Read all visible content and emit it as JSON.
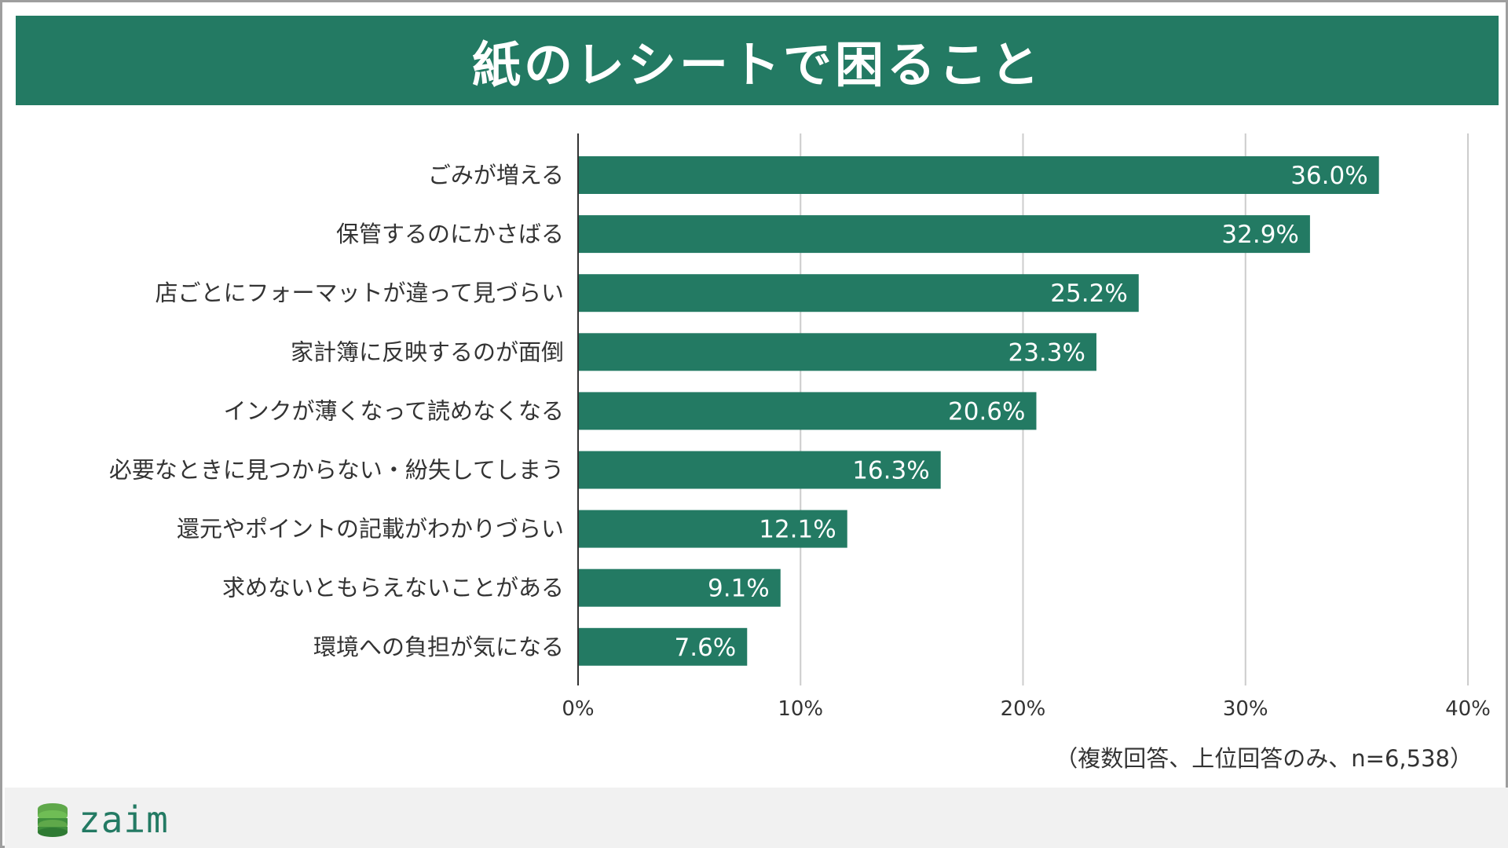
{
  "title": "紙のレシートで困ること",
  "note": "（複数回答、上位回答のみ、n=6,538）",
  "brand": {
    "name": "zaim",
    "icon": "coin-stack-icon"
  },
  "colors": {
    "bar": "#237a63",
    "banner": "#237a63",
    "grid": "#cccccc",
    "label": "#333333",
    "value_text": "#ffffff"
  },
  "chart_data": {
    "type": "bar",
    "orientation": "horizontal",
    "categories": [
      "ごみが増える",
      "保管するのにかさばる",
      "店ごとにフォーマットが違って見づらい",
      "家計簿に反映するのが面倒",
      "インクが薄くなって読めなくなる",
      "必要なときに見つからない・紛失してしまう",
      "還元やポイントの記載がわかりづらい",
      "求めないともらえないことがある",
      "環境への負担が気になる"
    ],
    "values": [
      36.0,
      32.9,
      25.2,
      23.3,
      20.6,
      16.3,
      12.1,
      9.1,
      7.6
    ],
    "value_labels": [
      "36.0%",
      "32.9%",
      "25.2%",
      "23.3%",
      "20.6%",
      "16.3%",
      "12.1%",
      "9.1%",
      "7.6%"
    ],
    "xlim": [
      0,
      40
    ],
    "x_ticks": [
      0,
      10,
      20,
      30,
      40
    ],
    "x_tick_labels": [
      "0%",
      "10%",
      "20%",
      "30%",
      "40%"
    ],
    "grid": true
  }
}
